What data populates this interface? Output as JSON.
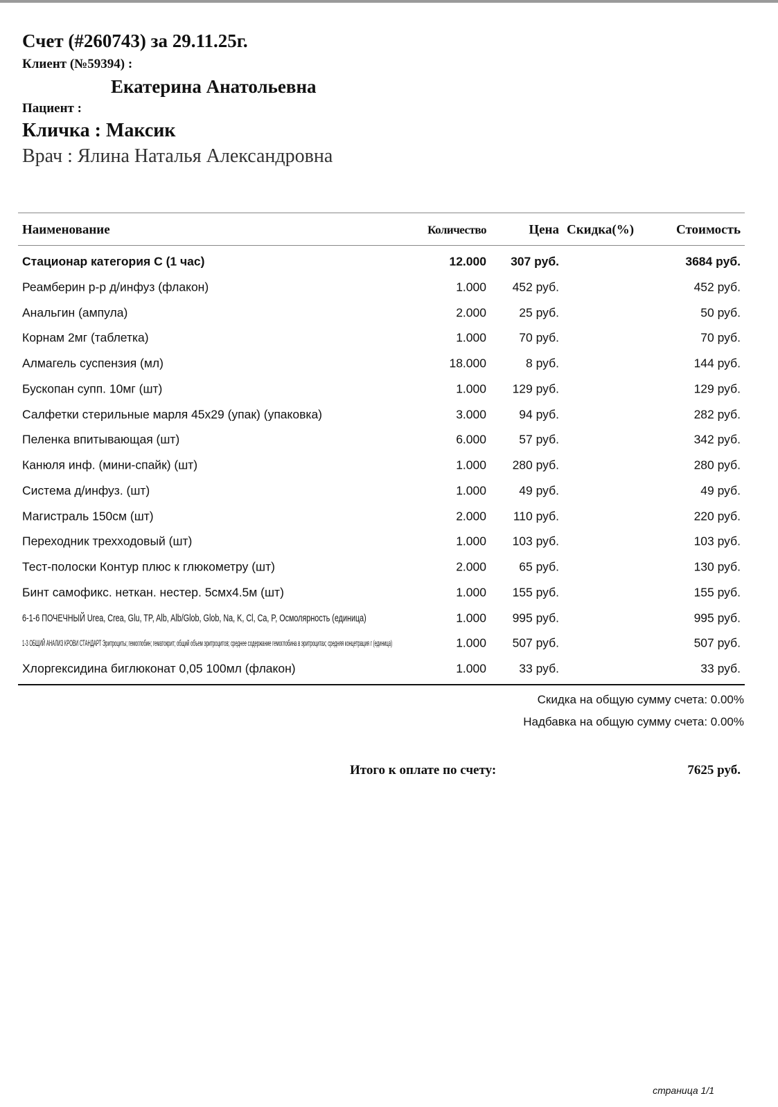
{
  "header": {
    "title": "Счет (#260743) за 29.11.25г.",
    "client_label": "Клиент (№59394) :",
    "client_name": "Екатерина Анатольевна",
    "patient_label": "Пациент :",
    "pet": "Кличка : Максик",
    "doctor": "Врач : Ялина Наталья Александровна"
  },
  "table": {
    "columns": [
      "Наименование",
      "Количество",
      "Цена",
      "Скидка(%)",
      "Стоимость"
    ],
    "rows": [
      [
        "Стационар категория С (1 час)",
        "12.000",
        "307 руб.",
        "3684 руб."
      ],
      [
        "Реамберин р-р д/инфуз (флакон)",
        "1.000",
        "452 руб.",
        "452 руб."
      ],
      [
        "Анальгин (ампула)",
        "2.000",
        "25 руб.",
        "50 руб."
      ],
      [
        "Корнам 2мг (таблетка)",
        "1.000",
        "70 руб.",
        "70 руб."
      ],
      [
        "Алмагель суспензия (мл)",
        "18.000",
        "8 руб.",
        "144 руб."
      ],
      [
        "Бускопан супп. 10мг (шт)",
        "1.000",
        "129 руб.",
        "129 руб."
      ],
      [
        "Салфетки стерильные марля 45х29 (упак) (упаковка)",
        "3.000",
        "94 руб.",
        "282 руб."
      ],
      [
        "Пеленка впитывающая (шт)",
        "6.000",
        "57 руб.",
        "342 руб."
      ],
      [
        "Канюля инф. (мини-спайк) (шт)",
        "1.000",
        "280 руб.",
        "280 руб."
      ],
      [
        "Система д/инфуз. (шт)",
        "1.000",
        "49 руб.",
        "49 руб."
      ],
      [
        "Магистраль 150см (шт)",
        "2.000",
        "110 руб.",
        "220 руб."
      ],
      [
        "Переходник трехходовый (шт)",
        "1.000",
        "103 руб.",
        "103 руб."
      ],
      [
        "Тест-полоски Контур плюс к глюкометру (шт)",
        "2.000",
        "65 руб.",
        "130 руб."
      ],
      [
        "Бинт самофикс. неткан. нестер. 5смх4.5м (шт)",
        "1.000",
        "155 руб.",
        "155 руб."
      ],
      [
        "6-1-6 ПОЧЕЧНЫЙ Urea, Crea, Glu, TP, Alb, Alb/Glob, Glob, Na, K, Cl, Ca, P, Осмолярность (единица)",
        "1.000",
        "995 руб.",
        "995 руб."
      ],
      [
        "1-3 ОБЩИЙ АНАЛИЗ КРОВИ СТАНДАРТ Эритроциты; гемоглобин; гематокрит; общий объем эритроцитов; среднее содержание гемоглобина в эритроцитах; средняя концетрация г (единица)",
        "1.000",
        "507 руб.",
        "507 руб."
      ],
      [
        "Хлоргексидина биглюконат 0,05 100мл (флакон)",
        "1.000",
        "33 руб.",
        "33 руб."
      ]
    ]
  },
  "summary": {
    "discount": "Скидка на общую сумму счета: 0.00%",
    "markup": "Надбавка на общую сумму счета: 0.00%",
    "total_label": "Итого к оплате по счету:",
    "total": "7625 руб."
  },
  "footer": {
    "page": "страница 1/1"
  }
}
